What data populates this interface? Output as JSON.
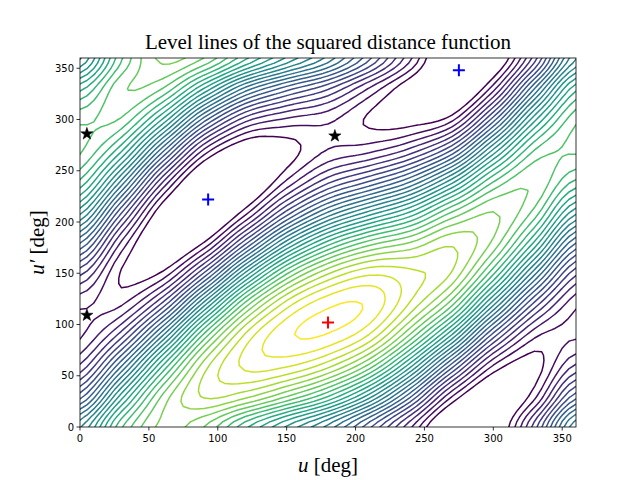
{
  "chart_data": {
    "type": "contour",
    "title": "Level lines of the squared distance function",
    "x_label": "u [deg]",
    "y_label": "u′ [deg]",
    "xlim": [
      0,
      360
    ],
    "ylim": [
      0,
      360
    ],
    "xticks": [
      0,
      50,
      100,
      150,
      200,
      250,
      300,
      350
    ],
    "yticks": [
      0,
      50,
      100,
      150,
      200,
      250,
      300,
      350
    ],
    "color": "viridis",
    "x": [
      0,
      30,
      60,
      90,
      120,
      150,
      180,
      210,
      240,
      270,
      300,
      330,
      360
    ],
    "y": [
      0,
      30,
      60,
      90,
      120,
      150,
      180,
      210,
      240,
      270,
      300,
      330,
      360
    ],
    "z": [
      [
        1.266,
        1.788,
        2.046,
        1.949,
        1.67,
        1.414,
        1.174,
        0.843,
        0.462,
        0.092,
        0.154,
        0.64,
        1.266
      ],
      [
        0.866,
        1.459,
        1.964,
        2.184,
        2.126,
        1.956,
        1.73,
        1.387,
        0.913,
        0.379,
        0.136,
        0.351,
        0.866
      ],
      [
        0.535,
        1.038,
        1.649,
        2.135,
        2.342,
        2.338,
        2.205,
        1.928,
        1.453,
        0.865,
        0.372,
        0.262,
        0.535
      ],
      [
        0.362,
        0.637,
        1.186,
        1.816,
        2.26,
        2.459,
        2.47,
        2.321,
        1.937,
        1.422,
        0.797,
        0.398,
        0.362
      ],
      [
        0.394,
        0.364,
        0.698,
        1.312,
        1.903,
        2.285,
        2.456,
        2.46,
        2.235,
        1.898,
        1.298,
        0.723,
        0.394
      ],
      [
        0.621,
        0.292,
        0.317,
        0.758,
        1.365,
        1.863,
        2.165,
        2.308,
        2.268,
        2.168,
        1.741,
        1.148,
        0.621
      ],
      [
        0.983,
        0.44,
        0.143,
        0.302,
        0.792,
        1.307,
        1.676,
        1.905,
        2.027,
        2.158,
        2.007,
        1.561,
        0.983
      ],
      [
        1.383,
        0.769,
        0.225,
        0.067,
        0.336,
        0.765,
        1.119,
        1.361,
        1.576,
        1.872,
        2.025,
        1.85,
        1.383
      ],
      [
        1.714,
        1.191,
        0.54,
        0.116,
        0.12,
        0.383,
        0.644,
        0.82,
        1.036,
        1.385,
        1.79,
        1.939,
        1.714
      ],
      [
        1.887,
        1.592,
        1.003,
        0.435,
        0.202,
        0.262,
        0.379,
        0.427,
        0.552,
        0.829,
        1.365,
        1.803,
        1.887
      ],
      [
        1.856,
        1.865,
        1.491,
        0.939,
        0.559,
        0.436,
        0.394,
        0.288,
        0.254,
        0.352,
        0.864,
        1.479,
        1.856
      ],
      [
        1.628,
        1.937,
        1.872,
        1.493,
        1.097,
        0.858,
        0.684,
        0.44,
        0.221,
        0.083,
        0.42,
        1.053,
        1.628
      ],
      [
        1.266,
        1.788,
        2.046,
        1.949,
        1.67,
        1.414,
        1.174,
        0.843,
        0.462,
        0.092,
        0.154,
        0.64,
        1.266
      ]
    ],
    "levels": [
      0.3,
      0.375,
      0.45,
      0.525,
      0.6,
      0.675,
      0.75,
      0.825,
      0.9,
      0.975,
      1.05,
      1.125,
      1.2,
      1.275,
      1.35,
      1.425,
      1.5,
      1.575,
      1.65,
      1.725,
      1.8,
      1.875,
      1.95,
      2.025,
      2.1,
      2.175,
      2.25,
      2.325,
      2.4,
      2.475
    ],
    "series": [
      {
        "marker": "plus",
        "color": "#ff0000",
        "x": [
          180
        ],
        "y": [
          102
        ]
      },
      {
        "marker": "plus",
        "color": "#0000ff",
        "x": [
          93,
          275
        ],
        "y": [
          222,
          348
        ]
      },
      {
        "marker": "star",
        "color": "#000000",
        "x": [
          5,
          5,
          185
        ],
        "y": [
          109,
          286,
          284
        ]
      }
    ]
  }
}
